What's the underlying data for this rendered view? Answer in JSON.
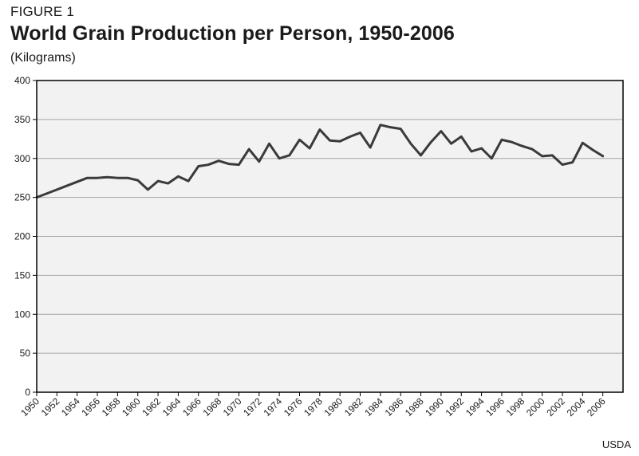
{
  "figure": {
    "label": "FIGURE 1",
    "title": "World Grain Production per Person, 1950-2006",
    "subtitle": "(Kilograms)",
    "source": "USDA"
  },
  "colors": {
    "plot_background": "#f2f2f2",
    "gridline": "#a6a6a6",
    "axis": "#000000",
    "line": "#3a3a3a"
  },
  "chart_data": {
    "type": "line",
    "title": "World Grain Production per Person, 1950-2006",
    "subtitle": "(Kilograms)",
    "xlabel": "",
    "ylabel": "",
    "ylim": [
      0,
      400
    ],
    "yticks": [
      0,
      50,
      100,
      150,
      200,
      250,
      300,
      350,
      400
    ],
    "xlim": [
      1950,
      2008
    ],
    "xticks": [
      "1950",
      "1952",
      "1954",
      "1956",
      "1958",
      "1960",
      "1962",
      "1964",
      "1966",
      "1968",
      "1970",
      "1972",
      "1974",
      "1976",
      "1978",
      "1980",
      "1982",
      "1984",
      "1986",
      "1988",
      "1990",
      "1992",
      "1994",
      "1996",
      "1998",
      "2000",
      "2002",
      "2004",
      "2006"
    ],
    "grid": true,
    "legend": "none",
    "series": [
      {
        "x": [
          1950,
          1951,
          1952,
          1953,
          1954,
          1955,
          1956,
          1957,
          1958,
          1959,
          1960,
          1961,
          1962,
          1963,
          1964,
          1965,
          1966,
          1967,
          1968,
          1969,
          1970,
          1971,
          1972,
          1973,
          1974,
          1975,
          1976,
          1977,
          1978,
          1979,
          1980,
          1981,
          1982,
          1983,
          1984,
          1985,
          1986,
          1987,
          1988,
          1989,
          1990,
          1991,
          1992,
          1993,
          1994,
          1995,
          1996,
          1997,
          1998,
          1999,
          2000,
          2001,
          2002,
          2003,
          2004,
          2005,
          2006
        ],
        "values": [
          250,
          255,
          260,
          265,
          270,
          275,
          275,
          276,
          275,
          275,
          272,
          260,
          271,
          268,
          277,
          271,
          290,
          292,
          297,
          293,
          292,
          312,
          296,
          319,
          300,
          304,
          324,
          313,
          337,
          323,
          322,
          328,
          333,
          314,
          343,
          340,
          338,
          319,
          304,
          321,
          335,
          319,
          328,
          309,
          313,
          300,
          324,
          321,
          316,
          312,
          303,
          304,
          292,
          295,
          320,
          311,
          303
        ]
      }
    ]
  }
}
